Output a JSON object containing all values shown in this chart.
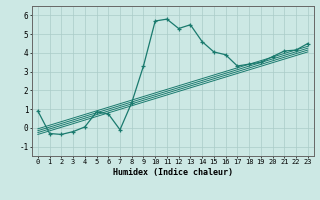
{
  "xlabel": "Humidex (Indice chaleur)",
  "bg_color": "#cce8e4",
  "grid_color": "#aaccc8",
  "line_color": "#1a7a6e",
  "xlim": [
    -0.5,
    23.5
  ],
  "ylim": [
    -1.5,
    6.5
  ],
  "xticks": [
    0,
    1,
    2,
    3,
    4,
    5,
    6,
    7,
    8,
    9,
    10,
    11,
    12,
    13,
    14,
    15,
    16,
    17,
    18,
    19,
    20,
    21,
    22,
    23
  ],
  "yticks": [
    -1,
    0,
    1,
    2,
    3,
    4,
    5,
    6
  ],
  "main_x": [
    0,
    1,
    2,
    3,
    4,
    5,
    6,
    7,
    8,
    9,
    10,
    11,
    12,
    13,
    14,
    15,
    16,
    17,
    18,
    19,
    20,
    21,
    22,
    23
  ],
  "main_y": [
    0.9,
    -0.3,
    -0.35,
    -0.2,
    0.05,
    0.85,
    0.75,
    -0.1,
    1.35,
    3.3,
    5.7,
    5.8,
    5.3,
    5.5,
    4.6,
    4.05,
    3.9,
    3.3,
    3.4,
    3.5,
    3.8,
    4.1,
    4.15,
    4.5
  ],
  "reg_lines": [
    {
      "x0": 0,
      "y0": -0.35,
      "x1": 23,
      "y1": 4.05
    },
    {
      "x0": 0,
      "y0": -0.25,
      "x1": 23,
      "y1": 4.15
    },
    {
      "x0": 0,
      "y0": -0.15,
      "x1": 23,
      "y1": 4.25
    },
    {
      "x0": 0,
      "y0": -0.05,
      "x1": 23,
      "y1": 4.35
    }
  ]
}
